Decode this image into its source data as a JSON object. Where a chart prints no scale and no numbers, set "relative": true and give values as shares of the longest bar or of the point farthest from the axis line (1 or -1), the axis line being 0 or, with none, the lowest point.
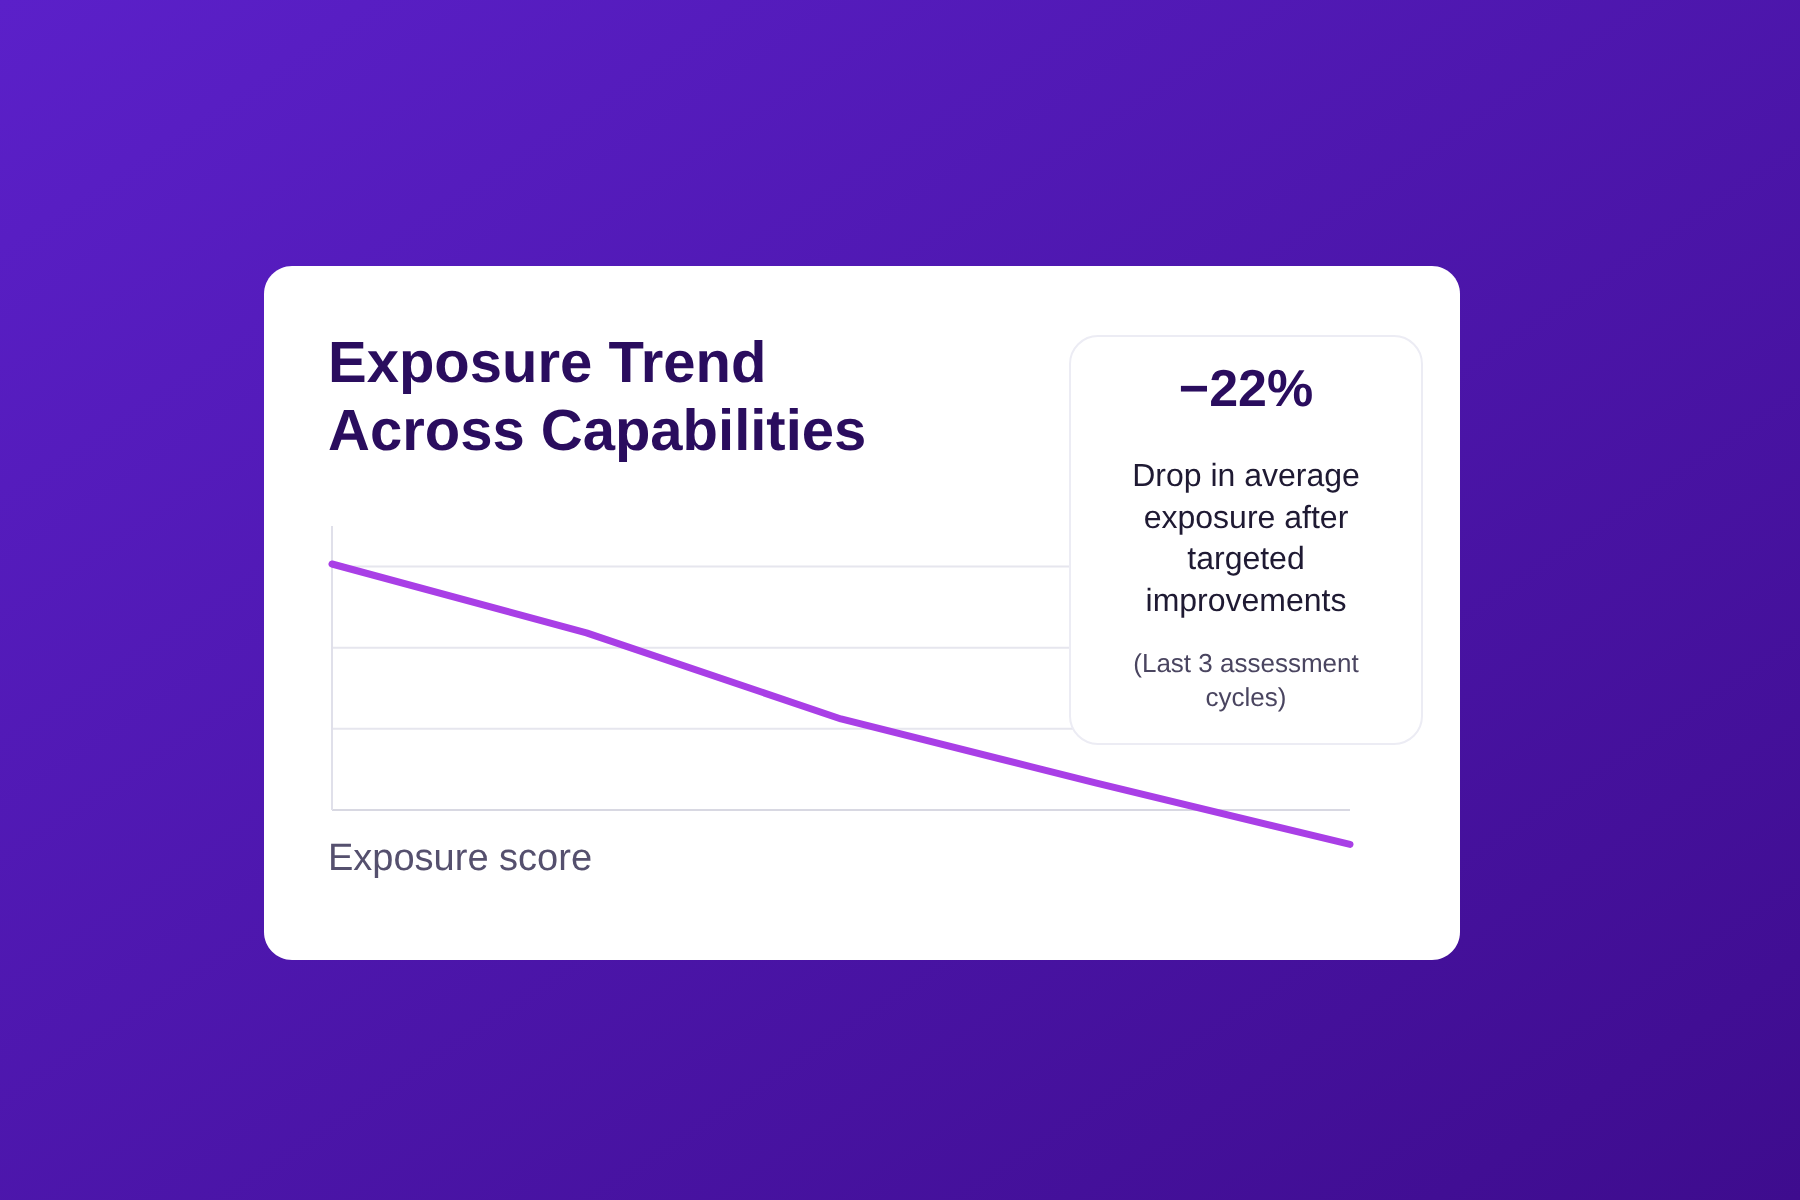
{
  "chart_data": {
    "type": "line",
    "title": "Exposure Trend Across Capabilities",
    "xlabel": "Exposure score",
    "categories": [
      null,
      null,
      null,
      null,
      null
    ],
    "series": [
      {
        "color": "#a93fe6",
        "values": [
          1,
          0.72,
          0.37,
          0.11,
          -0.14
        ]
      }
    ],
    "relative": true,
    "ref_lines": [
      {
        "axis": "y",
        "value": 0.33,
        "color": "#e6e6ee"
      },
      {
        "axis": "y",
        "value": 0.66,
        "color": "#e6e6ee"
      },
      {
        "axis": "y",
        "value": 0.99,
        "color": "#e6e6ee"
      }
    ],
    "annotations": [
      "−22%",
      "Drop in average exposure after targeted improvements",
      "(Last 3 assessment cycles)"
    ]
  }
}
